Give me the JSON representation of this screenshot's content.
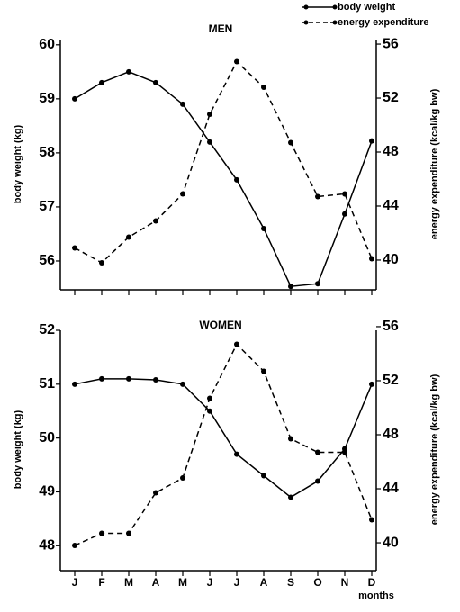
{
  "chart_data": [
    {
      "type": "line",
      "title": "MEN",
      "ylabel": "body  weight  (kg)",
      "y2label": "energy  expenditure  (kcal/kg bw)",
      "legend": "top-right",
      "categories": [
        null,
        null,
        null,
        null,
        null,
        null,
        null,
        null,
        null,
        null,
        null,
        null
      ],
      "ylim": [
        55.5,
        60.08
      ],
      "yticks": [
        56,
        57,
        58,
        59,
        60
      ],
      "y2lim": [
        37.93,
        56.27
      ],
      "y2ticks": [
        40,
        44,
        48,
        52,
        56
      ],
      "series": [
        {
          "name": "body weight",
          "color": "#000000",
          "style": "solid",
          "values": [
            59.0,
            59.3,
            59.5,
            59.3,
            58.9,
            58.2,
            57.5,
            56.6,
            55.53,
            55.58,
            56.87,
            58.22
          ]
        },
        {
          "name": "energy expenditure",
          "color": "#000000",
          "style": "dashed",
          "axis": "y2",
          "values": [
            40.9,
            39.8,
            41.7,
            42.9,
            44.9,
            50.8,
            54.7,
            52.8,
            48.7,
            44.7,
            44.9,
            40.1
          ]
        }
      ]
    },
    {
      "type": "line",
      "title": "WOMEN",
      "ylabel": "body weight (kg)",
      "y2label": "energy  expenditure  (kcal/kg  bw)",
      "xlabel": "months",
      "categories": [
        "J",
        "F",
        "M",
        "A",
        "M",
        "J",
        "J",
        "A",
        "S",
        "O",
        "N",
        "D"
      ],
      "ylim": [
        47.57,
        52.0
      ],
      "yticks": [
        48,
        49,
        50,
        51,
        52
      ],
      "y2lim": [
        38.07,
        55.73
      ],
      "y2ticks": [
        40,
        44,
        48,
        52,
        56
      ],
      "series": [
        {
          "color": "#000000",
          "style": "solid",
          "values": [
            51.0,
            51.1,
            51.1,
            51.08,
            51.0,
            50.5,
            49.7,
            49.3,
            48.9,
            49.2,
            49.8,
            51.0
          ]
        },
        {
          "color": "#000000",
          "style": "dashed",
          "axis": "y2",
          "values": [
            39.8,
            40.7,
            40.7,
            43.7,
            44.8,
            50.7,
            54.7,
            52.7,
            47.7,
            46.7,
            46.7,
            41.7
          ]
        }
      ]
    }
  ]
}
